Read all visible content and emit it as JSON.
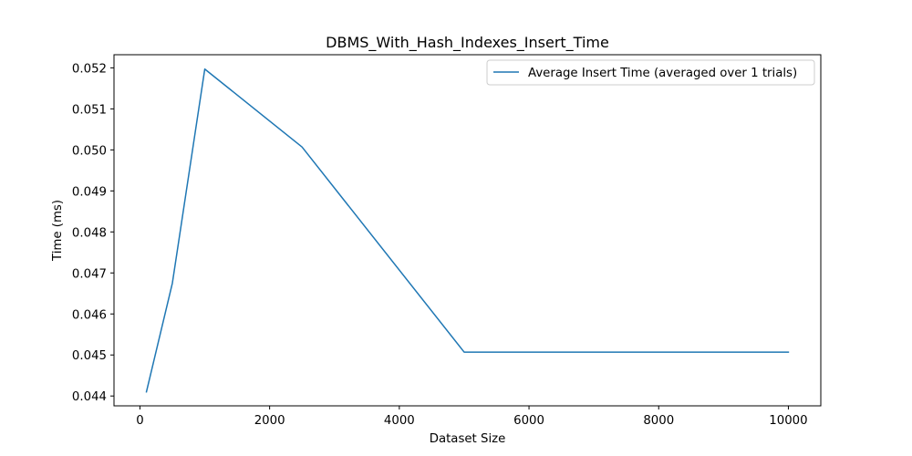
{
  "chart_data": {
    "type": "line",
    "title": "DBMS_With_Hash_Indexes_Insert_Time",
    "xlabel": "Dataset Size",
    "ylabel": "Time (ms)",
    "xlim": [
      -400,
      10500
    ],
    "ylim": [
      0.04376,
      0.05232
    ],
    "xticks": [
      0,
      2000,
      4000,
      6000,
      8000,
      10000
    ],
    "yticks": [
      0.044,
      0.045,
      0.046,
      0.047,
      0.048,
      0.049,
      0.05,
      0.051,
      0.052
    ],
    "xtick_labels": [
      "0",
      "2000",
      "4000",
      "6000",
      "8000",
      "10000"
    ],
    "ytick_labels": [
      "0.044",
      "0.045",
      "0.046",
      "0.047",
      "0.048",
      "0.049",
      "0.050",
      "0.051",
      "0.052"
    ],
    "grid": false,
    "legend_position": "upper right",
    "series": [
      {
        "name": "Average Insert Time (averaged over 1 trials)",
        "color": "#1f77b4",
        "x": [
          100,
          500,
          1000,
          2500,
          5000,
          10000
        ],
        "y": [
          0.0441,
          0.04675,
          0.05197,
          0.05007,
          0.04507,
          0.04507
        ]
      }
    ]
  }
}
